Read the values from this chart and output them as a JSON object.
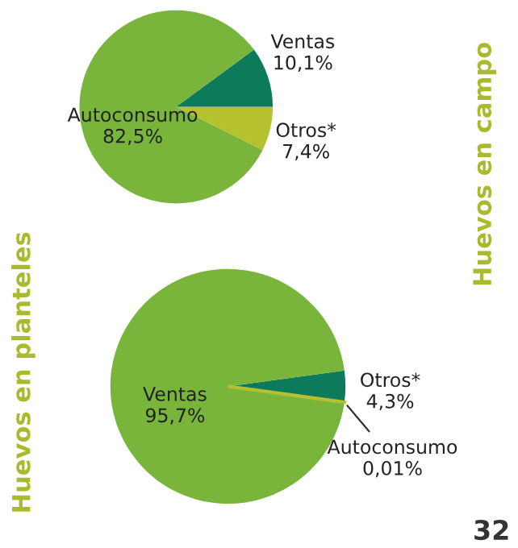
{
  "chart_data": [
    {
      "type": "pie",
      "title": "Huevos en campo",
      "categories": [
        "Otros*",
        "Ventas",
        "Autoconsumo"
      ],
      "values": [
        7.4,
        10.1,
        82.5
      ],
      "colors": [
        "#b5c12e",
        "#0e7a5c",
        "#79b43b"
      ],
      "value_labels": [
        "7,4%",
        "10,1%",
        "82,5%"
      ]
    },
    {
      "type": "pie",
      "title": "Huevos en planteles",
      "categories": [
        "Autoconsumo",
        "Otros*",
        "Ventas"
      ],
      "values": [
        0.01,
        4.3,
        95.7
      ],
      "colors": [
        "#b5c12e",
        "#0e7a5c",
        "#79b43b"
      ],
      "value_labels": [
        "0,01%",
        "4,3%",
        "95,7%"
      ],
      "annotations": [
        "32"
      ]
    }
  ]
}
